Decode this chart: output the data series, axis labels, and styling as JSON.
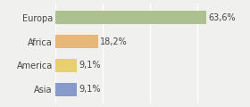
{
  "categories": [
    "Europa",
    "Africa",
    "America",
    "Asia"
  ],
  "values": [
    63.6,
    18.2,
    9.1,
    9.1
  ],
  "labels": [
    "63,6%",
    "18,2%",
    "9,1%",
    "9,1%"
  ],
  "bar_colors": [
    "#adc090",
    "#e8b87a",
    "#e8d070",
    "#8899cc"
  ],
  "background_color": "#f0f0ee",
  "xlim": [
    0,
    80
  ],
  "bar_height": 0.55,
  "label_fontsize": 7,
  "tick_fontsize": 7,
  "grid_color": "#ffffff",
  "text_color": "#444444"
}
